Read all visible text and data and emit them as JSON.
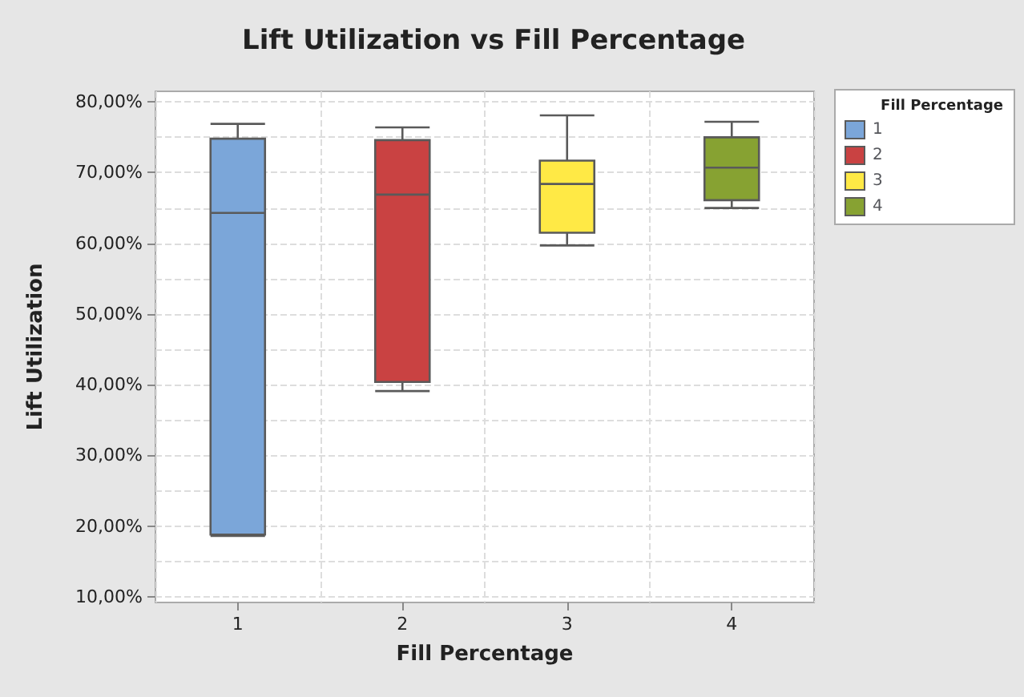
{
  "chart_data": {
    "type": "box",
    "title": "Lift Utilization vs Fill Percentage",
    "xlabel": "Fill Percentage",
    "ylabel": "Lift Utilization",
    "legend_title": "Fill Percentage",
    "categories": [
      "1",
      "2",
      "3",
      "4"
    ],
    "series": [
      {
        "name": "1",
        "color": "#7ba6d9",
        "boxes": [
          {
            "low": 18.6,
            "q1": 18.8,
            "median": 64.3,
            "q3": 74.8,
            "high": 76.9
          },
          null,
          null,
          null
        ]
      },
      {
        "name": "2",
        "color": "#c94242",
        "boxes": [
          null,
          {
            "low": 39.1,
            "q1": 40.4,
            "median": 66.9,
            "q3": 74.6,
            "high": 76.4
          },
          null,
          null
        ]
      },
      {
        "name": "3",
        "color": "#ffe945",
        "boxes": [
          null,
          null,
          {
            "low": 59.7,
            "q1": 61.5,
            "median": 68.4,
            "q3": 71.7,
            "high": 78.1
          },
          null
        ]
      },
      {
        "name": "4",
        "color": "#87a232",
        "boxes": [
          null,
          null,
          null,
          {
            "low": 65.0,
            "q1": 66.1,
            "median": 70.7,
            "q3": 75.0,
            "high": 77.2
          }
        ]
      }
    ],
    "ylim": [
      9.2,
      81.5
    ],
    "yticks": [
      {
        "value": 10,
        "label": "10,00%"
      },
      {
        "value": 20,
        "label": "20,00%"
      },
      {
        "value": 30,
        "label": "30,00%"
      },
      {
        "value": 40,
        "label": "40,00%"
      },
      {
        "value": 50,
        "label": "50,00%"
      },
      {
        "value": 60,
        "label": "60,00%"
      },
      {
        "value": 70,
        "label": "70,00%"
      },
      {
        "value": 80,
        "label": "80,00%"
      }
    ],
    "grid": true,
    "legend": "right"
  }
}
